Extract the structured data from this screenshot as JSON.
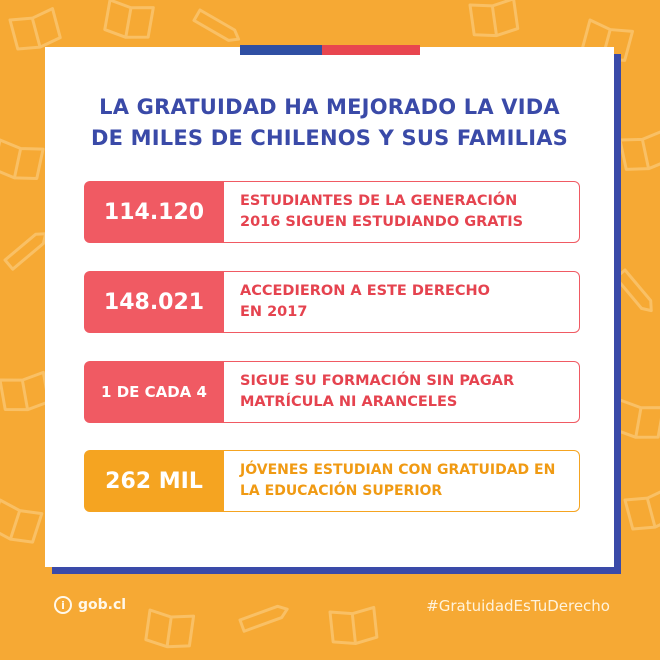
{
  "colors": {
    "background": "#f6a934",
    "card": "#ffffff",
    "card_shadow": "#3a4aa8",
    "title": "#3a4aa8",
    "red": "#f05a63",
    "orange": "#f5a421",
    "flag_blue": "#2f4fa3",
    "flag_red": "#e8464f"
  },
  "title": {
    "line1": "LA GRATUIDAD HA MEJORADO LA VIDA",
    "line2": "DE MILES DE CHILENOS Y SUS FAMILIAS"
  },
  "stats": [
    {
      "value": "114.120",
      "line1": "ESTUDIANTES DE LA GENERACIÓN",
      "line2": "2016 SIGUEN ESTUDIANDO GRATIS",
      "color": "red"
    },
    {
      "value": "148.021",
      "line1": "ACCEDIERON A ESTE DERECHO",
      "line2": "EN 2017",
      "color": "red"
    },
    {
      "value": "1 DE CADA 4",
      "line1": "SIGUE SU FORMACIÓN SIN PAGAR",
      "line2": "MATRÍCULA NI ARANCELES",
      "color": "red"
    },
    {
      "value": "262 MIL",
      "line1": "JÓVENES ESTUDIAN CON GRATUIDAD EN",
      "line2": "LA EDUCACIÓN SUPERIOR",
      "color": "orange"
    }
  ],
  "footer": {
    "logo_icon": "info-circle-icon",
    "logo_text": "gob.cl",
    "hashtag": "#GratuidadEsTuDerecho"
  }
}
